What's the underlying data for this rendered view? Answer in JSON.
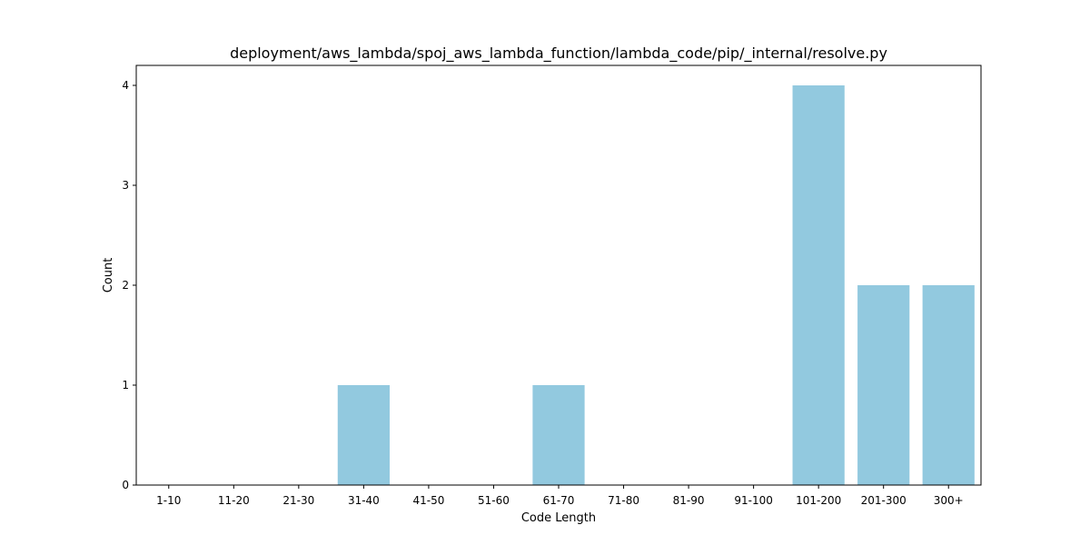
{
  "chart_data": {
    "type": "bar",
    "title": "deployment/aws_lambda/spoj_aws_lambda_function/lambda_code/pip/_internal/resolve.py",
    "xlabel": "Code Length",
    "ylabel": "Count",
    "categories": [
      "1-10",
      "11-20",
      "21-30",
      "31-40",
      "41-50",
      "51-60",
      "61-70",
      "71-80",
      "81-90",
      "91-100",
      "101-200",
      "201-300",
      "300+"
    ],
    "values": [
      0,
      0,
      0,
      1,
      0,
      0,
      1,
      0,
      0,
      0,
      4,
      2,
      2
    ],
    "ylim": [
      0,
      4.2
    ],
    "yticks": [
      0,
      1,
      2,
      3,
      4
    ],
    "grid": false,
    "bar_color": "#92c9df",
    "axis_color": "#000000"
  }
}
